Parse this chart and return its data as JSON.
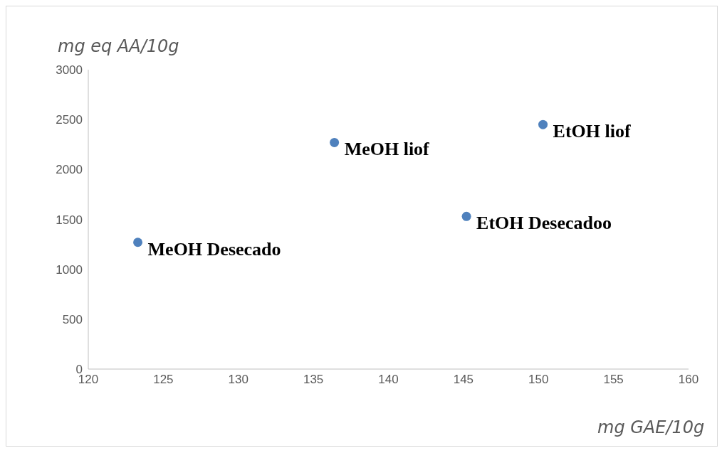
{
  "chart_data": {
    "type": "scatter",
    "xlabel": "mg GAE/10g",
    "ylabel": "mg eq AA/10g",
    "x": [
      123.3,
      136.4,
      150.3,
      145.2
    ],
    "series": [
      {
        "color": "#4f81bd",
        "values": [
          1270,
          2270,
          2450,
          1530
        ]
      }
    ],
    "marker": "circle",
    "grid": false,
    "xlim": [
      120,
      160
    ],
    "xticks": [
      120,
      125,
      130,
      135,
      140,
      145,
      150,
      155,
      160
    ],
    "ylim": [
      0,
      3000
    ],
    "yticks": [
      0,
      500,
      1000,
      1500,
      2000,
      2500,
      3000
    ],
    "annotations": [
      {
        "text": "MeOH Desecado",
        "x": 123.3,
        "y": 1270
      },
      {
        "text": "MeOH liof",
        "x": 136.4,
        "y": 2270
      },
      {
        "text": "EtOH liof",
        "x": 150.3,
        "y": 2450
      },
      {
        "text": "EtOH Desecadoo",
        "x": 145.2,
        "y": 1530
      }
    ]
  }
}
